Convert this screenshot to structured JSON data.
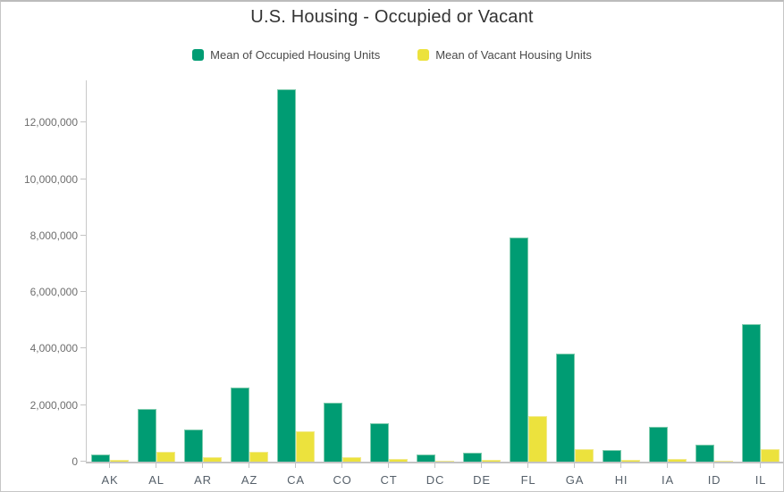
{
  "header": {
    "title": "U.S. Housing - Occupied or Vacant"
  },
  "legend": {
    "items": [
      {
        "label": "Mean of Occupied Housing Units",
        "color": "#009c73"
      },
      {
        "label": "Mean of Vacant Housing Units",
        "color": "#ece23d"
      }
    ]
  },
  "chart_data": {
    "type": "bar",
    "title": "U.S. Housing - Occupied or Vacant",
    "xlabel": "",
    "ylabel": "",
    "grid": false,
    "legend_position": "top-center",
    "ylim": [
      0,
      13500000
    ],
    "categories": [
      "AK",
      "AL",
      "AR",
      "AZ",
      "CA",
      "CO",
      "CT",
      "DC",
      "DE",
      "FL",
      "GA",
      "HI",
      "IA",
      "ID",
      "IL"
    ],
    "series": [
      {
        "name": "Mean of Occupied Housing Units",
        "color": "#009c73",
        "border_color": "#7fccae",
        "values": [
          260000,
          1870000,
          1130000,
          2610000,
          13180000,
          2080000,
          1345000,
          240000,
          325000,
          7950000,
          3820000,
          400000,
          1220000,
          610000,
          4860000
        ]
      },
      {
        "name": "Mean of Vacant Housing Units",
        "color": "#ece23d",
        "border_color": "#f2ea8c",
        "values": [
          65000,
          340000,
          165000,
          355000,
          1060000,
          165000,
          110000,
          30000,
          50000,
          1600000,
          430000,
          50000,
          100000,
          45000,
          430000
        ]
      }
    ],
    "y_ticks": {
      "values": [
        0,
        2000000,
        4000000,
        6000000,
        8000000,
        10000000,
        12000000
      ],
      "labels": [
        "0",
        "2,000,000",
        "4,000,000",
        "6,000,000",
        "8,000,000",
        "10,000,000",
        "12,000,000"
      ]
    },
    "colors": {
      "axis_line": "#c9c9c9",
      "tick": "#c4c4c4",
      "y_tick_label": "#6e6e6e",
      "x_category_label": "#56606a",
      "title": "#333333",
      "legend_label": "#4a4a4a"
    }
  }
}
